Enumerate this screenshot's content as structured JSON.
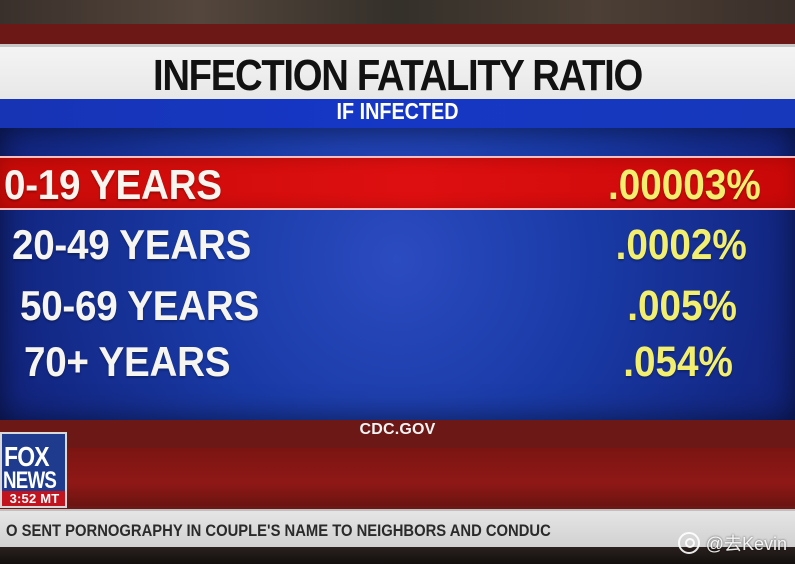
{
  "title": "INFECTION FATALITY RATIO",
  "subtitle": "IF INFECTED",
  "rows": [
    {
      "age": "0-19 YEARS",
      "value": ".00003%"
    },
    {
      "age": "20-49 YEARS",
      "value": ".0002%"
    },
    {
      "age": "50-69 YEARS",
      "value": ".005%"
    },
    {
      "age": "70+ YEARS",
      "value": ".054%"
    }
  ],
  "source": "CDC.GOV",
  "logo": {
    "line1": "FOX",
    "line2": "NEWS",
    "time": "3:52 MT"
  },
  "ticker": "O SENT PORNOGRAPHY IN COUPLE'S NAME TO NEIGHBORS AND CONDUC",
  "watermark": "@去Kevin",
  "colors": {
    "highlight": "#d90d0d",
    "table_bg": "#1e3db0",
    "value": "#f2ef6f",
    "title_band": "#efefef",
    "subtitle_band": "#1535be"
  }
}
